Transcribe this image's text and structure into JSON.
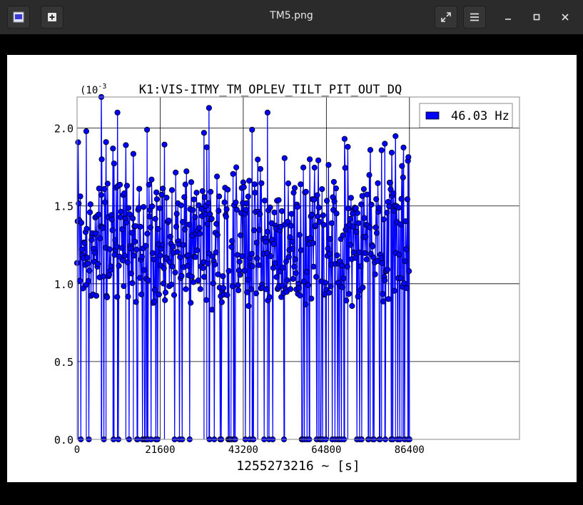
{
  "window": {
    "title": "TM5.png"
  },
  "toolbar": {
    "left_icons": [
      "image-app-icon",
      "new-tab-icon"
    ],
    "right_icons": [
      "fullscreen-icon",
      "menu-icon",
      "minimize-icon",
      "maximize-icon",
      "close-icon"
    ]
  },
  "chart_data": {
    "type": "scatter",
    "title": "K1:VIS-ITMY_TM_OPLEV_TILT_PIT_OUT_DQ",
    "xlabel": "1255273216 ~ [s]",
    "ylabel": "",
    "y_multiplier": "(10^-3",
    "xlim": [
      0,
      115000
    ],
    "ylim": [
      0,
      2.2
    ],
    "xticks": [
      0,
      21600,
      43200,
      64800,
      86400
    ],
    "xtick_labels": [
      "0",
      "21600",
      "43200",
      "64800",
      "86400"
    ],
    "yticks": [
      0.0,
      0.5,
      1.0,
      1.5,
      2.0
    ],
    "ytick_labels": [
      "0.0",
      "0.5",
      "1.0",
      "1.5",
      "2.0"
    ],
    "grid": true,
    "legend_position": "top-right",
    "series": [
      {
        "name": "46.03 Hz",
        "color": "#0000ff",
        "marker": "circle",
        "stem": true,
        "x_range": [
          0,
          86400
        ],
        "typical_y_range": [
          0.9,
          1.6
        ],
        "max_y": 2.2,
        "notable_points": [
          {
            "x": 6300,
            "y": 2.2
          },
          {
            "x": 34300,
            "y": 2.13
          },
          {
            "x": 49500,
            "y": 2.1
          },
          {
            "x": 10500,
            "y": 2.1
          },
          {
            "x": 18200,
            "y": 1.99
          },
          {
            "x": 45500,
            "y": 1.99
          },
          {
            "x": 2400,
            "y": 1.98
          },
          {
            "x": 33000,
            "y": 1.97
          },
          {
            "x": 80000,
            "y": 1.9
          },
          {
            "x": 86000,
            "y": 1.79
          }
        ]
      }
    ]
  }
}
